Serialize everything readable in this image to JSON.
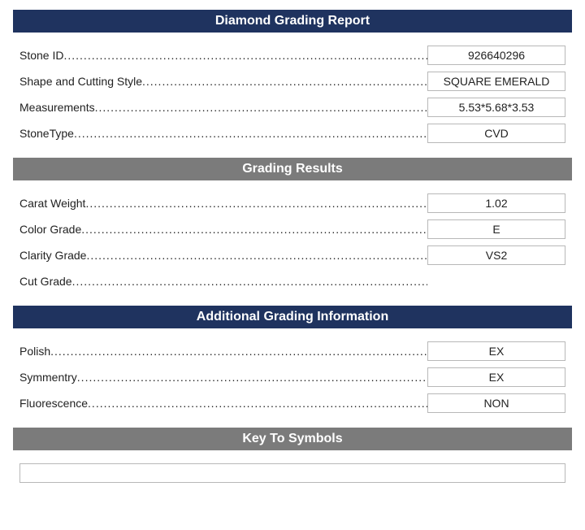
{
  "colors": {
    "navy": "#1f335f",
    "gray": "#7b7b7b",
    "border": "#b8b8b8",
    "text": "#222222",
    "white": "#ffffff"
  },
  "sections": {
    "report": {
      "title": "Diamond Grading Report",
      "rows": [
        {
          "label": "Stone ID",
          "value": "926640296"
        },
        {
          "label": "Shape and Cutting Style",
          "value": "SQUARE EMERALD"
        },
        {
          "label": "Measurements",
          "value": "5.53*5.68*3.53"
        },
        {
          "label": "StoneType",
          "value": "CVD"
        }
      ]
    },
    "grading": {
      "title": "Grading Results",
      "rows": [
        {
          "label": "Carat Weight",
          "value": "1.02"
        },
        {
          "label": "Color Grade",
          "value": "E"
        },
        {
          "label": "Clarity Grade",
          "value": "VS2"
        },
        {
          "label": "Cut Grade",
          "value": ""
        }
      ]
    },
    "additional": {
      "title": "Additional Grading Information",
      "rows": [
        {
          "label": "Polish",
          "value": "EX"
        },
        {
          "label": "Symmentry",
          "value": "EX"
        },
        {
          "label": "Fluorescence",
          "value": "NON"
        }
      ]
    },
    "symbols": {
      "title": "Key To Symbols"
    }
  }
}
